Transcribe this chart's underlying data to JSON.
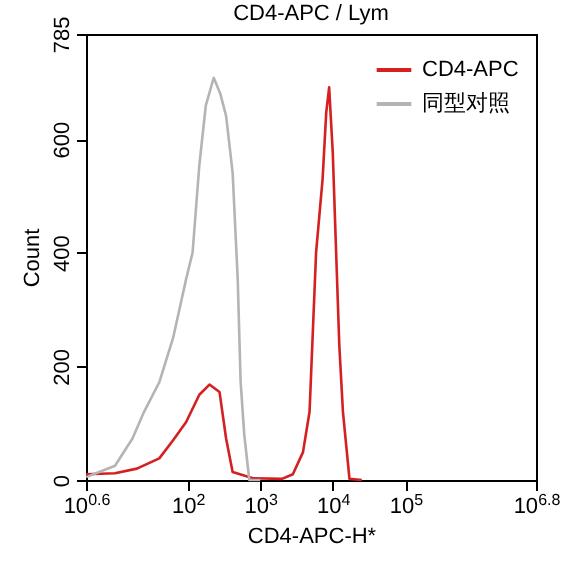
{
  "chart_data": {
    "type": "line",
    "title": "CD4-APC / Lym",
    "xlabel": "CD4-APC-H*",
    "ylabel": "Count",
    "log": "x",
    "xlim": [
      3.981,
      6309573
    ],
    "xticks": [
      {
        "value": 3.981,
        "label": "10$^{0.6}$"
      },
      {
        "value": 100,
        "label": "10$^{2}$"
      },
      {
        "value": 1000,
        "label": "10$^{3}$"
      },
      {
        "value": 10000,
        "label": "10$^{4}$"
      },
      {
        "value": 100000,
        "label": "10$^{5}$"
      },
      {
        "value": 6309573,
        "label": "10$^{6.8}$"
      }
    ],
    "ylim": [
      0,
      785
    ],
    "yticks": [
      0,
      200,
      400,
      600,
      785
    ],
    "grid": false,
    "legend": "top right",
    "marker": "none",
    "line_style": "solid",
    "series": [
      {
        "name": "CD4-APC",
        "color": "#d42020",
        "x": [
          4.0,
          10,
          20,
          40.7,
          63.1,
          95.5,
          145,
          200,
          275,
          339,
          417,
          794,
          1995,
          2818,
          3890,
          4786,
          5888,
          7244,
          8128,
          8913,
          10000,
          10965,
          12303,
          13804,
          16982,
          25119
        ],
        "values": [
          10,
          12,
          20,
          38,
          70,
          102,
          150,
          168,
          155,
          73,
          14,
          3,
          2,
          10,
          49,
          120,
          400,
          530,
          647,
          691,
          576,
          424,
          237,
          120,
          2,
          0
        ]
      },
      {
        "name": "同型对照",
        "color": "#b4b4b4",
        "x": [
          4.0,
          6.3,
          10,
          17.4,
          25.1,
          40.7,
          63.1,
          95.5,
          117,
          145,
          178,
          229,
          282,
          339,
          417,
          490,
          537,
          603,
          708,
          1000
        ],
        "values": [
          5,
          15,
          25,
          73,
          120,
          172,
          250,
          354,
          400,
          554,
          659,
          708,
          680,
          641,
          541,
          354,
          174,
          80,
          0,
          0
        ]
      }
    ]
  }
}
